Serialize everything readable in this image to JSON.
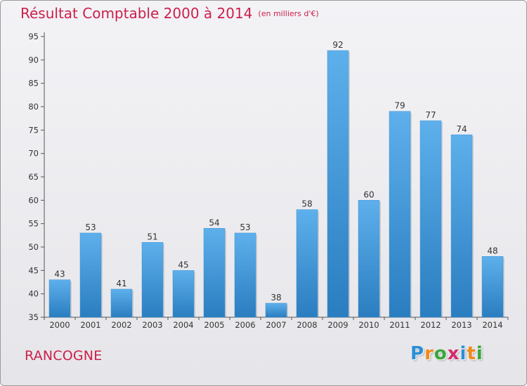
{
  "title": "Résultat Comptable 2000 à 2014",
  "unit_note": "(en milliers d'€)",
  "location": "RANCOGNE",
  "logo": {
    "letters": [
      "P",
      "r",
      "o",
      "x",
      "i",
      "t",
      "i"
    ],
    "colors": [
      "#2b8fd6",
      "#f08a1c",
      "#3aa63a",
      "#d62b6e",
      "#2b8fd6",
      "#f08a1c",
      "#3aa63a"
    ]
  },
  "colors": {
    "title": "#cc1f4a",
    "bar_top": "#5eb0ec",
    "bar_bottom": "#2a7dbf"
  },
  "chart_data": {
    "type": "bar",
    "title": "Résultat Comptable 2000 à 2014",
    "xlabel": "",
    "ylabel": "",
    "categories": [
      "2000",
      "2001",
      "2002",
      "2003",
      "2004",
      "2005",
      "2006",
      "2007",
      "2008",
      "2009",
      "2010",
      "2011",
      "2012",
      "2013",
      "2014"
    ],
    "values": [
      43,
      53,
      41,
      51,
      45,
      54,
      53,
      38,
      58,
      92,
      60,
      79,
      77,
      74,
      48
    ],
    "ylim": [
      35,
      95
    ],
    "yticks": [
      35,
      40,
      45,
      50,
      55,
      60,
      65,
      70,
      75,
      80,
      85,
      90,
      95
    ],
    "grid": false,
    "legend": "none"
  }
}
